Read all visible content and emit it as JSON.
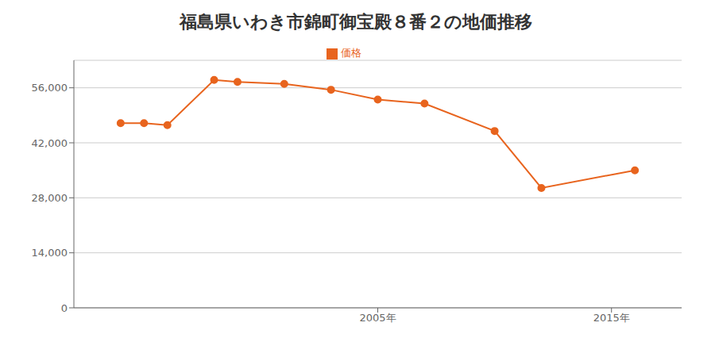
{
  "chart_data": {
    "type": "line",
    "title": "福島県いわき市錦町御宝殿８番２の地価推移",
    "x": [
      1994,
      1995,
      1996,
      1998,
      1999,
      2001,
      2003,
      2005,
      2007,
      2010,
      2012,
      2016
    ],
    "series": [
      {
        "name": "価格",
        "color": "#e8641e",
        "marker": "circle",
        "values": [
          47000,
          47000,
          46500,
          58000,
          57500,
          57000,
          55500,
          53000,
          52000,
          45000,
          30500,
          35000
        ]
      }
    ],
    "xlim": [
      1992,
      2018
    ],
    "xticks": [
      {
        "value": 2005,
        "label": "2005年"
      },
      {
        "value": 2015,
        "label": "2015年"
      }
    ],
    "ylim": [
      0,
      63000
    ],
    "yticks": [
      0,
      {
        "value": 14000,
        "label": "14,000"
      },
      {
        "value": 28000,
        "label": "28,000"
      },
      {
        "value": 42000,
        "label": "42,000"
      },
      {
        "value": 56000,
        "label": "56,000"
      }
    ],
    "grid": true,
    "legend": "top"
  }
}
